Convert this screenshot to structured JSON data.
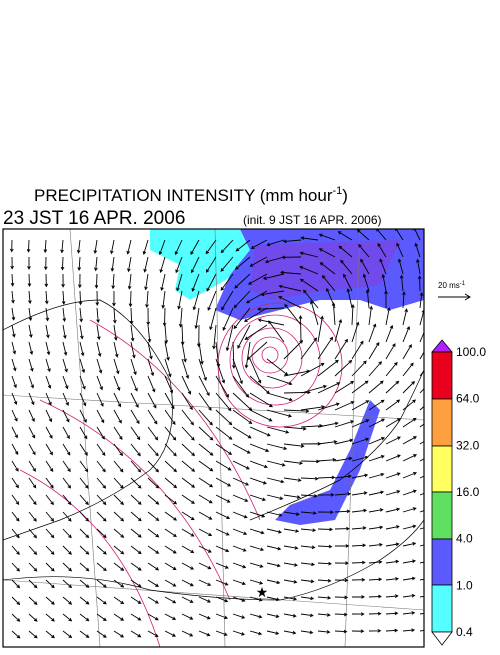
{
  "header": {
    "title": "PRECIPITATION INTENSITY (mm hour",
    "title_exponent": "-1",
    "title_close": ")",
    "time": "23 JST 16 APR. 2006",
    "init": "(init. 9 JST 16 APR. 2006)"
  },
  "vector_reference": {
    "label": "20 ms",
    "exponent": "-1"
  },
  "legend": {
    "labels": [
      "0.4",
      "1.0",
      "4.0",
      "16.0",
      "32.0",
      "64.0",
      "100.0"
    ]
  }
}
